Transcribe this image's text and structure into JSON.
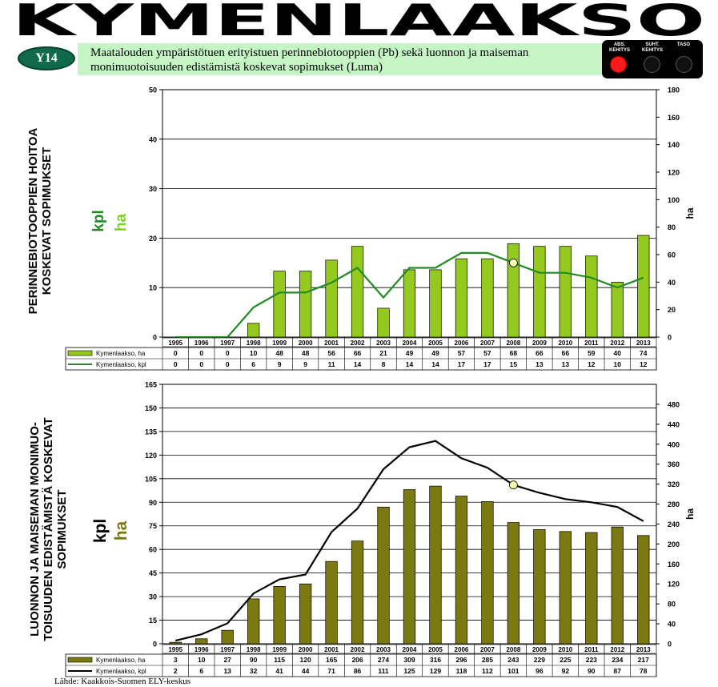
{
  "header": {
    "title": "KYMENLAAKSO",
    "badge": "Y14",
    "subtitle_line1": "Maatalouden ympäristötuen erityistuen perinnebiotooppien (Pb) sekä luonnon ja maiseman",
    "subtitle_line2": "monimuotoisuuden edistämistä koskevat sopimukset (Luma)"
  },
  "indicator": {
    "labels": [
      [
        "ABS.",
        "KEHITYS"
      ],
      [
        "SUHT.",
        "KEHITYS"
      ],
      [
        "TASO"
      ]
    ],
    "active_index": 0,
    "active_color": "#ff1a1a"
  },
  "footer": {
    "source": "Lähde: Kaakkois-Suomen ELY-keskus"
  },
  "colors": {
    "bar_top": "#94c91e",
    "line_top": "#228b22",
    "bar_bottom": "#7a7a10",
    "line_bottom": "#000000",
    "highlight": "#ffffaa"
  },
  "chart_data": [
    {
      "type": "bar",
      "title": "PERINNEBIOTOOPPIEN HOITOA KOSKEVAT SOPIMUKSET",
      "title_lines": [
        "PERINNEBIOTOOPPIEN HOITOA",
        "KOSKEVAT SOPIMUKSET"
      ],
      "ylabel_left": "kpl",
      "ylabel_left_unit2": "ha",
      "ylabel_right": "ha",
      "categories": [
        "1995",
        "1996",
        "1997",
        "1998",
        "1999",
        "2000",
        "2001",
        "2002",
        "2003",
        "2004",
        "2005",
        "2006",
        "2007",
        "2008",
        "2009",
        "2010",
        "2011",
        "2012",
        "2013"
      ],
      "ylim_left": [
        0,
        50
      ],
      "yticks_left": [
        0,
        10,
        20,
        30,
        40,
        50
      ],
      "ylim_right": [
        0,
        180
      ],
      "yticks_right": [
        0,
        20,
        40,
        60,
        80,
        100,
        120,
        140,
        160,
        180
      ],
      "grid": true,
      "highlight_index": 13,
      "series": [
        {
          "name": "Kymenlaakso, ha",
          "kind": "bar",
          "axis": "right",
          "values": [
            0,
            0,
            0,
            10,
            48,
            48,
            56,
            66,
            21,
            49,
            49,
            57,
            57,
            68,
            66,
            66,
            59,
            40,
            74
          ]
        },
        {
          "name": "Kymenlaakso, kpl",
          "kind": "line",
          "axis": "left",
          "values": [
            0,
            0,
            0,
            6,
            9,
            9,
            11,
            14,
            8,
            14,
            14,
            17,
            17,
            15,
            13,
            13,
            12,
            10,
            12
          ]
        }
      ]
    },
    {
      "type": "bar",
      "title": "LUONNON JA MAISEMAN MONIMUOTOISUUDEN EDISTÄMISTÄ KOSKEVAT SOPIMUKSET",
      "title_lines": [
        "LUONNON JA MAISEMAN MONIMUO-",
        "TOISUUDEN EDISTÄMISTÄ KOSKEVAT",
        "SOPIMUKSET"
      ],
      "ylabel_left": "kpl",
      "ylabel_left_unit2": "ha",
      "ylabel_right": "ha",
      "categories": [
        "1995",
        "1996",
        "1997",
        "1998",
        "1999",
        "2000",
        "2001",
        "2002",
        "2003",
        "2004",
        "2005",
        "2006",
        "2007",
        "2008",
        "2009",
        "2010",
        "2011",
        "2012",
        "2013"
      ],
      "ylim_left": [
        0,
        165
      ],
      "yticks_left": [
        0,
        15,
        30,
        45,
        60,
        75,
        90,
        105,
        120,
        135,
        150,
        165
      ],
      "ylim_right": [
        0,
        520
      ],
      "yticks_right": [
        0,
        40,
        80,
        120,
        160,
        200,
        240,
        280,
        320,
        360,
        400,
        440,
        480
      ],
      "grid": true,
      "highlight_index": 13,
      "series": [
        {
          "name": "Kymenlaakso, ha",
          "kind": "bar",
          "axis": "right",
          "values": [
            3,
            10,
            27,
            90,
            115,
            120,
            165,
            206,
            274,
            309,
            316,
            296,
            285,
            243,
            229,
            225,
            223,
            234,
            217
          ]
        },
        {
          "name": "Kymenlaakso, kpl",
          "kind": "line",
          "axis": "left",
          "values": [
            2,
            6,
            13,
            32,
            41,
            44,
            71,
            86,
            111,
            125,
            129,
            118,
            112,
            101,
            96,
            92,
            90,
            87,
            78
          ]
        }
      ]
    }
  ]
}
